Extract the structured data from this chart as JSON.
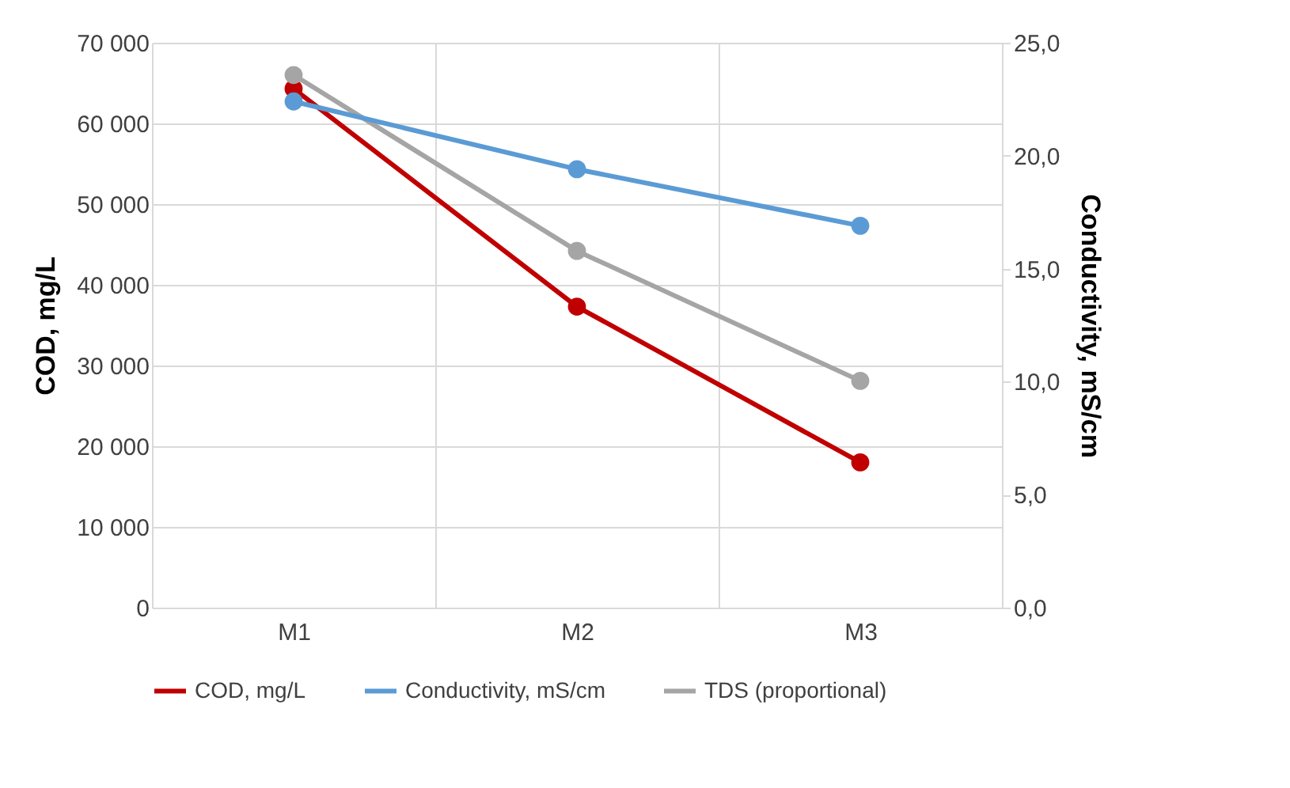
{
  "chart_data": {
    "type": "line",
    "categories": [
      "M1",
      "M2",
      "M3"
    ],
    "ylabel": "COD, mg/L",
    "y2label": "Conductivity,  mS/cm",
    "ylim": [
      0,
      70000
    ],
    "yticks": [
      {
        "value": 0,
        "label": "0"
      },
      {
        "value": 10000,
        "label": "10 000"
      },
      {
        "value": 20000,
        "label": "20 000"
      },
      {
        "value": 30000,
        "label": "30 000"
      },
      {
        "value": 40000,
        "label": "40 000"
      },
      {
        "value": 50000,
        "label": "50 000"
      },
      {
        "value": 60000,
        "label": "60 000"
      },
      {
        "value": 70000,
        "label": "70 000"
      }
    ],
    "y2lim": [
      0,
      25
    ],
    "y2ticks": [
      {
        "value": 0,
        "label": "0,0"
      },
      {
        "value": 5,
        "label": "5,0"
      },
      {
        "value": 10,
        "label": "10,0"
      },
      {
        "value": 15,
        "label": "15,0"
      },
      {
        "value": 20,
        "label": "20,0"
      },
      {
        "value": 25,
        "label": "25,0"
      }
    ],
    "series": [
      {
        "name": "COD, mg/L",
        "color": "#c00000",
        "values": [
          64300,
          37300,
          18000
        ]
      },
      {
        "name": "Conductivity, mS/cm",
        "color": "#5b9bd5",
        "values": [
          22.4,
          19.4,
          16.9
        ],
        "axis": "y2"
      },
      {
        "name": "TDS (proportional)",
        "color": "#a5a5a5",
        "values": [
          66000,
          44200,
          28100
        ]
      }
    ],
    "grid": true,
    "legend": "bottom",
    "marker": "circle",
    "line_style": "solid"
  }
}
